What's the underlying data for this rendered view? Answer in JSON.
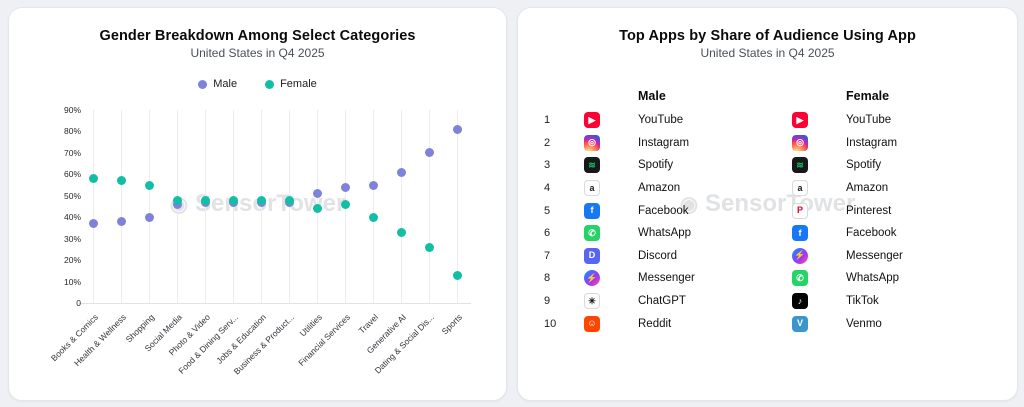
{
  "left_panel": {
    "title": "Gender Breakdown Among Select Categories",
    "subtitle": "United States in Q4 2025",
    "watermark": "SensorTower"
  },
  "chart_data": {
    "type": "scatter",
    "title": "Gender Breakdown Among Select Categories",
    "subtitle": "United States in Q4 2025",
    "categories": [
      "Books & Comics",
      "Health & Wellness",
      "Shopping",
      "Social Media",
      "Photo & Video",
      "Food & Dining Serv...",
      "Jobs & Education",
      "Business & Product...",
      "Utilities",
      "Financial Services",
      "Travel",
      "Generative AI",
      "Dating & Social Dis...",
      "Sports"
    ],
    "series": [
      {
        "name": "Male",
        "color": "#7f82da",
        "values": [
          37,
          38,
          40,
          46,
          47,
          47,
          47,
          47,
          51,
          54,
          55,
          61,
          70,
          81
        ]
      },
      {
        "name": "Female",
        "color": "#13bfa4",
        "values": [
          58,
          57,
          55,
          48,
          48,
          48,
          48,
          48,
          44,
          46,
          40,
          33,
          26,
          13
        ]
      }
    ],
    "ylim": [
      0,
      90
    ],
    "yticks": [
      "0",
      "10%",
      "20%",
      "30%",
      "40%",
      "50%",
      "60%",
      "70%",
      "80%",
      "90%"
    ],
    "grid": "vertical",
    "legend_position": "top"
  },
  "right_panel": {
    "title": "Top Apps by Share of Audience Using App",
    "subtitle": "United States in Q4 2025",
    "watermark": "SensorTower",
    "rank_labels": [
      "1",
      "2",
      "3",
      "4",
      "5",
      "6",
      "7",
      "8",
      "9",
      "10"
    ],
    "columns": [
      {
        "header": "Male",
        "apps": [
          {
            "name": "YouTube",
            "icon": "youtube-icon",
            "bg": "#FF0033",
            "fg": "#ffffff",
            "glyph": "▶"
          },
          {
            "name": "Instagram",
            "icon": "instagram-icon",
            "bg": "radial-gradient(circle at 30% 110%, #fdf497 0%, #fd5949 45%, #d6249f 60%, #285AEB 90%)",
            "fg": "#ffffff",
            "glyph": "◎"
          },
          {
            "name": "Spotify",
            "icon": "spotify-icon",
            "bg": "#16181c",
            "fg": "#1DB954",
            "glyph": "≋"
          },
          {
            "name": "Amazon",
            "icon": "amazon-icon",
            "bg": "#ffffff",
            "fg": "#1a1a1a",
            "glyph": "a",
            "border": true
          },
          {
            "name": "Facebook",
            "icon": "facebook-icon",
            "bg": "#1877F2",
            "fg": "#ffffff",
            "glyph": "f"
          },
          {
            "name": "WhatsApp",
            "icon": "whatsapp-icon",
            "bg": "#25D366",
            "fg": "#ffffff",
            "glyph": "✆"
          },
          {
            "name": "Discord",
            "icon": "discord-icon",
            "bg": "#5865F2",
            "fg": "#ffffff",
            "glyph": "D"
          },
          {
            "name": "Messenger",
            "icon": "messenger-icon",
            "bg": "linear-gradient(135deg,#0099ff,#a033ff 60%,#ff5280 95%)",
            "fg": "#ffffff",
            "glyph": "⚡",
            "circle": true
          },
          {
            "name": "ChatGPT",
            "icon": "chatgpt-icon",
            "bg": "#ffffff",
            "fg": "#111111",
            "glyph": "✳",
            "border": true
          },
          {
            "name": "Reddit",
            "icon": "reddit-icon",
            "bg": "#FF4500",
            "fg": "#ffffff",
            "glyph": "☺"
          }
        ]
      },
      {
        "header": "Female",
        "apps": [
          {
            "name": "YouTube",
            "icon": "youtube-icon",
            "bg": "#FF0033",
            "fg": "#ffffff",
            "glyph": "▶"
          },
          {
            "name": "Instagram",
            "icon": "instagram-icon",
            "bg": "radial-gradient(circle at 30% 110%, #fdf497 0%, #fd5949 45%, #d6249f 60%, #285AEB 90%)",
            "fg": "#ffffff",
            "glyph": "◎"
          },
          {
            "name": "Spotify",
            "icon": "spotify-icon",
            "bg": "#16181c",
            "fg": "#1DB954",
            "glyph": "≋"
          },
          {
            "name": "Amazon",
            "icon": "amazon-icon",
            "bg": "#ffffff",
            "fg": "#1a1a1a",
            "glyph": "a",
            "border": true
          },
          {
            "name": "Pinterest",
            "icon": "pinterest-icon",
            "bg": "#ffffff",
            "fg": "#E60023",
            "glyph": "P",
            "border": true
          },
          {
            "name": "Facebook",
            "icon": "facebook-icon",
            "bg": "#1877F2",
            "fg": "#ffffff",
            "glyph": "f"
          },
          {
            "name": "Messenger",
            "icon": "messenger-icon",
            "bg": "linear-gradient(135deg,#0099ff,#a033ff 60%,#ff5280 95%)",
            "fg": "#ffffff",
            "glyph": "⚡",
            "circle": true
          },
          {
            "name": "WhatsApp",
            "icon": "whatsapp-icon",
            "bg": "#25D366",
            "fg": "#ffffff",
            "glyph": "✆"
          },
          {
            "name": "TikTok",
            "icon": "tiktok-icon",
            "bg": "#010101",
            "fg": "#ffffff",
            "glyph": "♪"
          },
          {
            "name": "Venmo",
            "icon": "venmo-icon",
            "bg": "#3D95CE",
            "fg": "#ffffff",
            "glyph": "V"
          }
        ]
      }
    ]
  }
}
